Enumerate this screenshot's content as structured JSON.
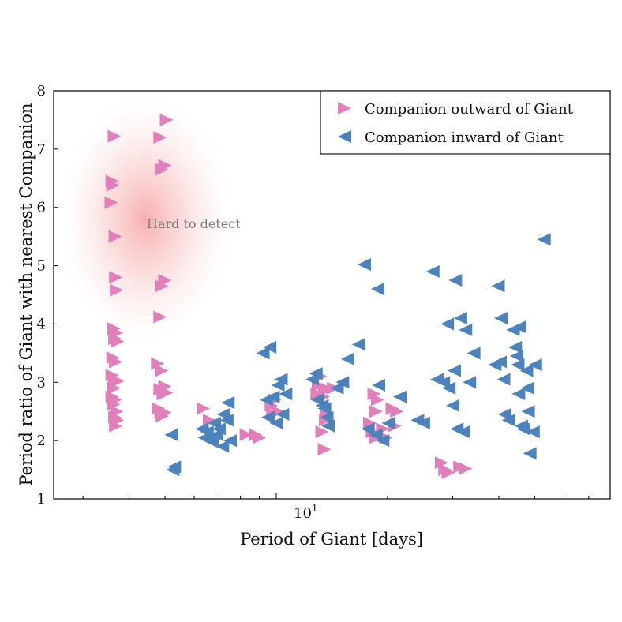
{
  "chart_data": {
    "type": "scatter",
    "title": "",
    "xlabel": "Period of Giant [days]",
    "ylabel": "Period ratio of Giant with nearest Companion",
    "xscale": "log",
    "xlim": [
      2.5,
      80
    ],
    "ylim": [
      1,
      8
    ],
    "y_ticks": [
      "1",
      "2",
      "3",
      "4",
      "5",
      "6",
      "7",
      "8"
    ],
    "x_tick_major_label_base": "10",
    "x_tick_major_label_exp": "1",
    "grid": false,
    "legend_position": "top-right",
    "annotation": "Hard to detect",
    "series": [
      {
        "name": "Companion outward of Giant",
        "marker": "triangle-right",
        "color": "#e07fba",
        "points": [
          [
            3.65,
            7.22
          ],
          [
            3.6,
            6.45
          ],
          [
            3.62,
            6.38
          ],
          [
            3.58,
            6.08
          ],
          [
            3.67,
            5.5
          ],
          [
            3.68,
            4.8
          ],
          [
            3.7,
            4.58
          ],
          [
            3.64,
            3.92
          ],
          [
            3.7,
            3.85
          ],
          [
            3.66,
            3.75
          ],
          [
            3.72,
            3.7
          ],
          [
            3.62,
            3.42
          ],
          [
            3.68,
            3.35
          ],
          [
            3.6,
            3.12
          ],
          [
            3.66,
            3.05
          ],
          [
            3.72,
            3.02
          ],
          [
            3.64,
            2.9
          ],
          [
            3.6,
            2.75
          ],
          [
            3.67,
            2.7
          ],
          [
            3.63,
            2.62
          ],
          [
            3.7,
            2.5
          ],
          [
            3.66,
            2.4
          ],
          [
            3.72,
            2.35
          ],
          [
            3.68,
            2.25
          ],
          [
            5.05,
            7.5
          ],
          [
            4.85,
            7.2
          ],
          [
            4.9,
            6.65
          ],
          [
            5.0,
            6.72
          ],
          [
            5.0,
            4.75
          ],
          [
            4.9,
            4.65
          ],
          [
            4.85,
            4.12
          ],
          [
            4.78,
            3.32
          ],
          [
            4.9,
            3.2
          ],
          [
            5.0,
            2.93
          ],
          [
            4.85,
            2.88
          ],
          [
            4.95,
            2.8
          ],
          [
            5.05,
            2.82
          ],
          [
            4.8,
            2.55
          ],
          [
            4.88,
            2.5
          ],
          [
            5.0,
            2.48
          ],
          [
            4.92,
            2.42
          ],
          [
            6.35,
            2.55
          ],
          [
            6.6,
            2.35
          ],
          [
            8.3,
            2.1
          ],
          [
            8.8,
            2.1
          ],
          [
            9.0,
            2.05
          ],
          [
            9.9,
            2.7
          ],
          [
            9.7,
            2.6
          ],
          [
            10.1,
            2.5
          ],
          [
            9.8,
            2.45
          ],
          [
            13.2,
            3.1
          ],
          [
            13.0,
            2.95
          ],
          [
            13.5,
            2.9
          ],
          [
            13.8,
            2.88
          ],
          [
            14.3,
            2.9
          ],
          [
            12.9,
            2.8
          ],
          [
            13.4,
            2.75
          ],
          [
            13.7,
            2.45
          ],
          [
            13.6,
            2.35
          ],
          [
            13.3,
            2.15
          ],
          [
            13.5,
            1.85
          ],
          [
            18.4,
            2.8
          ],
          [
            18.8,
            2.7
          ],
          [
            18.6,
            2.5
          ],
          [
            17.9,
            2.3
          ],
          [
            18.2,
            2.15
          ],
          [
            19.4,
            2.2
          ],
          [
            18.6,
            2.05
          ],
          [
            19.8,
            2.05
          ],
          [
            20.6,
            2.55
          ],
          [
            21.2,
            2.5
          ],
          [
            20.9,
            2.25
          ],
          [
            28.0,
            1.62
          ],
          [
            28.6,
            1.5
          ],
          [
            29.2,
            1.45
          ],
          [
            31.4,
            1.55
          ],
          [
            32.5,
            1.52
          ]
        ]
      },
      {
        "name": "Companion inward of Giant",
        "marker": "triangle-left",
        "color": "#4d83bd",
        "points": [
          [
            5.2,
            2.1
          ],
          [
            5.3,
            1.55
          ],
          [
            5.25,
            1.5
          ],
          [
            6.3,
            2.2
          ],
          [
            6.5,
            2.15
          ],
          [
            6.4,
            2.05
          ],
          [
            6.6,
            2.0
          ],
          [
            6.7,
            1.98
          ],
          [
            6.8,
            2.3
          ],
          [
            7.0,
            2.2
          ],
          [
            7.2,
            2.45
          ],
          [
            7.35,
            2.35
          ],
          [
            7.4,
            2.65
          ],
          [
            6.9,
            2.1
          ],
          [
            7.15,
            1.9
          ],
          [
            7.5,
            2.0
          ],
          [
            9.2,
            3.5
          ],
          [
            9.6,
            3.6
          ],
          [
            9.4,
            2.7
          ],
          [
            9.8,
            2.75
          ],
          [
            10.1,
            2.95
          ],
          [
            10.3,
            3.05
          ],
          [
            9.5,
            2.4
          ],
          [
            10.0,
            2.3
          ],
          [
            10.4,
            2.45
          ],
          [
            10.6,
            2.8
          ],
          [
            12.5,
            3.05
          ],
          [
            12.8,
            3.15
          ],
          [
            12.9,
            2.7
          ],
          [
            13.3,
            2.6
          ],
          [
            13.5,
            2.55
          ],
          [
            13.7,
            2.4
          ],
          [
            13.8,
            2.25
          ],
          [
            14.6,
            2.9
          ],
          [
            15.1,
            3.0
          ],
          [
            15.6,
            3.4
          ],
          [
            16.7,
            3.65
          ],
          [
            17.3,
            5.02
          ],
          [
            18.8,
            4.6
          ],
          [
            17.7,
            2.2
          ],
          [
            18.6,
            2.1
          ],
          [
            19.4,
            2.0
          ],
          [
            20.1,
            2.3
          ],
          [
            21.6,
            2.75
          ],
          [
            18.9,
            2.95
          ],
          [
            24.1,
            2.35
          ],
          [
            25.0,
            2.3
          ],
          [
            26.5,
            4.9
          ],
          [
            27.2,
            3.05
          ],
          [
            28.3,
            3.0
          ],
          [
            29.0,
            4.0
          ],
          [
            29.3,
            2.9
          ],
          [
            30.0,
            2.6
          ],
          [
            30.3,
            3.2
          ],
          [
            30.5,
            4.75
          ],
          [
            31.5,
            4.1
          ],
          [
            30.8,
            2.2
          ],
          [
            32.0,
            2.15
          ],
          [
            32.5,
            3.9
          ],
          [
            33.3,
            3.0
          ],
          [
            34.2,
            3.5
          ],
          [
            39.8,
            4.65
          ],
          [
            40.5,
            4.1
          ],
          [
            39.0,
            3.3
          ],
          [
            40.3,
            3.35
          ],
          [
            41.2,
            3.05
          ],
          [
            41.5,
            2.45
          ],
          [
            42.5,
            2.35
          ],
          [
            43.7,
            3.9
          ],
          [
            44.3,
            3.6
          ],
          [
            44.7,
            3.45
          ],
          [
            45.0,
            3.3
          ],
          [
            45.2,
            2.8
          ],
          [
            46.0,
            2.25
          ],
          [
            46.6,
            2.2
          ],
          [
            47.5,
            3.2
          ],
          [
            47.8,
            2.9
          ],
          [
            48.0,
            2.5
          ],
          [
            48.5,
            1.78
          ],
          [
            49.5,
            2.15
          ],
          [
            50.2,
            3.3
          ],
          [
            45.5,
            3.95
          ],
          [
            53.0,
            5.45
          ]
        ]
      }
    ]
  }
}
